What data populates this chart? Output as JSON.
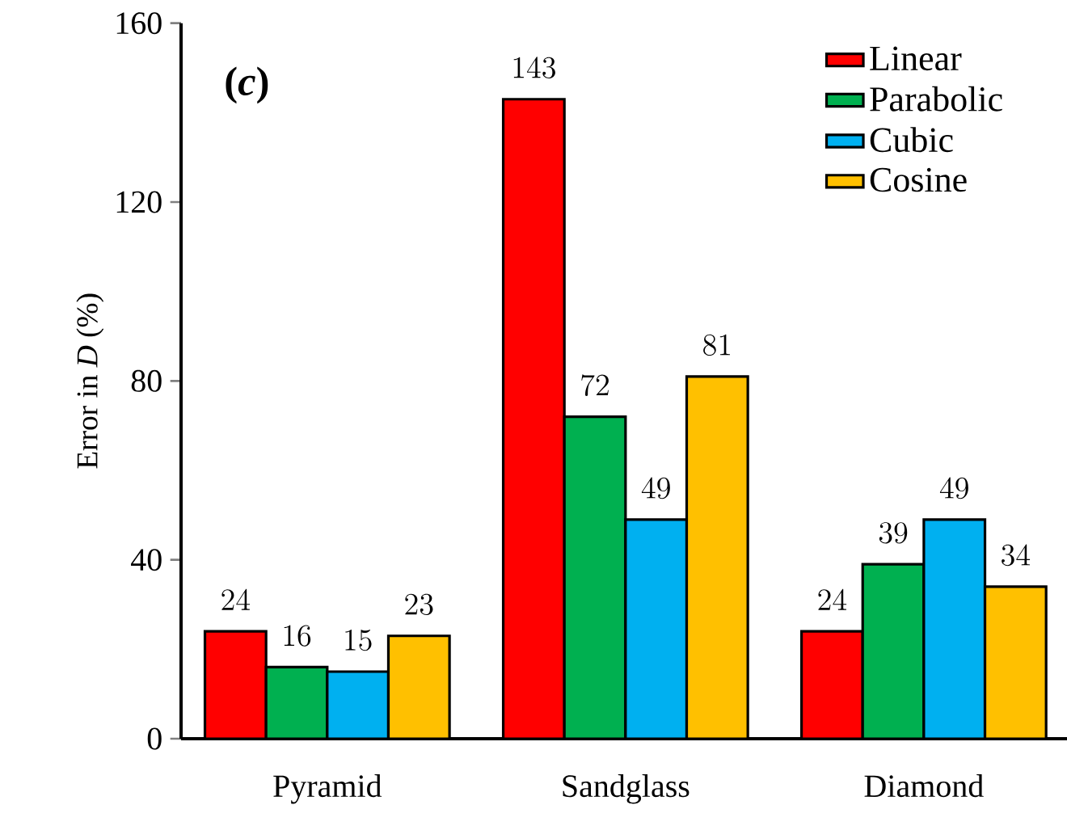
{
  "chart_data": {
    "type": "bar",
    "ylabel": "Error in *D* (%)",
    "categories": [
      "Pyramid",
      "Sandglass",
      "Diamond"
    ],
    "series": [
      {
        "name": "Linear",
        "color": "#ff0000",
        "values": [
          24,
          143,
          24
        ]
      },
      {
        "name": "Parabolic",
        "color": "#00b050",
        "values": [
          16,
          72,
          39
        ]
      },
      {
        "name": "Cubic",
        "color": "#00b0f0",
        "values": [
          15,
          49,
          49
        ]
      },
      {
        "name": "Cosine",
        "color": "#ffc000",
        "values": [
          23,
          81,
          34
        ]
      }
    ],
    "ylim": [
      0,
      160
    ],
    "yticks": [
      0,
      40,
      80,
      120,
      160
    ],
    "data_labels": true,
    "legend": "top right",
    "grid": false,
    "annotations": [
      "(*c*)"
    ]
  }
}
